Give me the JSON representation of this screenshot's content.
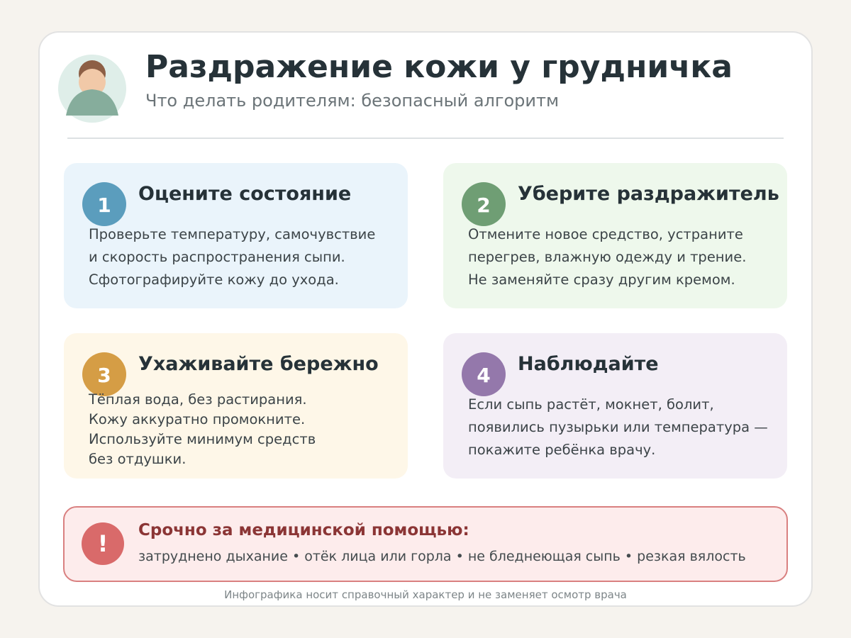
{
  "header": {
    "title": "Раздражение кожи у грудничка",
    "subtitle": "Что делать родителям: безопасный алгоритм"
  },
  "steps": [
    {
      "number": "1",
      "title": "Оцените состояние",
      "lines": [
        "Проверьте температуру, самочувствие",
        "и скорость распространения сыпи.",
        "Сфотографируйте кожу до ухода."
      ]
    },
    {
      "number": "2",
      "title": "Уберите раздражитель",
      "lines": [
        "Отмените новое средство, устраните",
        "перегрев, влажную одежду и трение.",
        "Не заменяйте сразу другим кремом."
      ]
    },
    {
      "number": "3",
      "title": "Ухаживайте бережно",
      "lines": [
        "Тёплая вода, без растирания.",
        "Кожу аккуратно промокните.",
        "Используйте минимум средств",
        "без отдушки."
      ]
    },
    {
      "number": "4",
      "title": "Наблюдайте",
      "lines": [
        "Если сыпь растёт, мокнет, болит,",
        "появились пузырьки или температура —",
        "покажите ребёнка врачу."
      ]
    }
  ],
  "alert": {
    "icon": "!",
    "title": "Срочно за медицинской помощью:",
    "text": "затруднено дыхание • отёк лица или горла • не бледнеющая сыпь • резкая вялость"
  },
  "footer": "Инфографика носит справочный характер и не заменяет осмотр врача"
}
